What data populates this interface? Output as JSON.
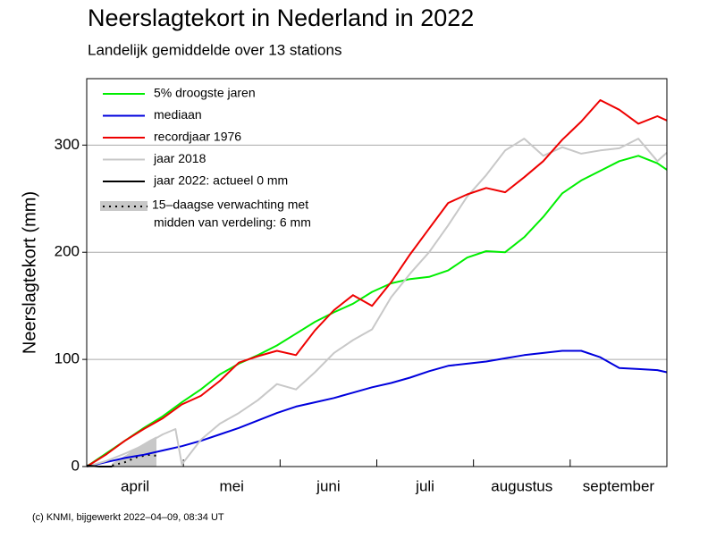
{
  "chart_data": {
    "type": "line",
    "title": "Neerslagtekort in Nederland in 2022",
    "subtitle": "Landelijk gemiddelde over 13 stations",
    "y_label": "Neerslagtekort (mm)",
    "footer": "(c) KNMI, bijgewerkt 2022–04–09, 08:34 UT",
    "categories": [
      "april",
      "mei",
      "juni",
      "juli",
      "augustus",
      "september"
    ],
    "xlim": [
      0,
      183
    ],
    "ylim": [
      0,
      362
    ],
    "yticks": [
      0,
      100,
      200,
      300
    ],
    "grid": true,
    "series": [
      {
        "name": "5% droogste jaren",
        "color": "#00ee00",
        "x": [
          0,
          6,
          12,
          18,
          24,
          30,
          36,
          42,
          48,
          54,
          60,
          66,
          72,
          78,
          84,
          90,
          96,
          102,
          108,
          114,
          120,
          126,
          132,
          138,
          144,
          150,
          156,
          162,
          168,
          174,
          180,
          183
        ],
        "values": [
          0,
          12,
          24,
          36,
          47,
          60,
          72,
          86,
          96,
          104,
          113,
          124,
          135,
          144,
          152,
          163,
          171,
          175,
          177,
          183,
          195,
          201,
          200,
          214,
          233,
          255,
          267,
          276,
          285,
          290,
          283,
          277
        ]
      },
      {
        "name": "mediaan",
        "color": "#0000dd",
        "x": [
          0,
          6,
          12,
          18,
          24,
          30,
          36,
          42,
          48,
          54,
          60,
          66,
          72,
          78,
          84,
          90,
          96,
          102,
          108,
          114,
          120,
          126,
          132,
          138,
          144,
          150,
          156,
          162,
          168,
          174,
          180,
          183
        ],
        "values": [
          0,
          4,
          8,
          11,
          15,
          19,
          24,
          30,
          36,
          43,
          50,
          56,
          60,
          64,
          69,
          74,
          78,
          83,
          89,
          94,
          96,
          98,
          101,
          104,
          106,
          108,
          108,
          102,
          92,
          91,
          90,
          88
        ]
      },
      {
        "name": "recordjaar 1976",
        "color": "#ee0000",
        "x": [
          0,
          6,
          12,
          18,
          24,
          30,
          36,
          42,
          48,
          54,
          60,
          66,
          72,
          78,
          84,
          90,
          96,
          102,
          108,
          114,
          120,
          126,
          132,
          138,
          144,
          150,
          156,
          162,
          168,
          174,
          180,
          183
        ],
        "values": [
          0,
          11,
          24,
          35,
          45,
          58,
          66,
          80,
          97,
          103,
          108,
          104,
          127,
          146,
          160,
          150,
          172,
          198,
          222,
          246,
          254,
          260,
          256,
          270,
          285,
          305,
          322,
          342,
          333,
          320,
          327,
          323
        ]
      },
      {
        "name": "jaar 2018",
        "color": "#c8c8c8",
        "x": [
          0,
          6,
          12,
          18,
          24,
          28,
          30,
          36,
          42,
          48,
          54,
          60,
          66,
          72,
          78,
          84,
          90,
          96,
          102,
          108,
          114,
          120,
          126,
          132,
          138,
          144,
          150,
          156,
          162,
          168,
          174,
          180,
          183
        ],
        "values": [
          0,
          5,
          12,
          20,
          30,
          35,
          2,
          25,
          40,
          50,
          62,
          77,
          72,
          88,
          106,
          118,
          128,
          158,
          180,
          200,
          225,
          252,
          272,
          295,
          306,
          290,
          298,
          292,
          295,
          297,
          306,
          285,
          293
        ]
      },
      {
        "name": "jaar 2022: actueel 0 mm",
        "color": "#000000",
        "x": [
          0,
          4,
          8
        ],
        "values": [
          1,
          0,
          0
        ]
      }
    ],
    "forecast": {
      "label": [
        "15–daagse verwachting met",
        "midden van verdeling: 6 mm"
      ],
      "color": "#c8c8c8",
      "median_color": "#000000",
      "x": [
        8,
        12,
        16,
        20,
        22
      ],
      "low": [
        0,
        0,
        0,
        0,
        0
      ],
      "high": [
        3,
        10,
        18,
        25,
        28
      ],
      "median": [
        1,
        4,
        9,
        11,
        10
      ]
    }
  }
}
